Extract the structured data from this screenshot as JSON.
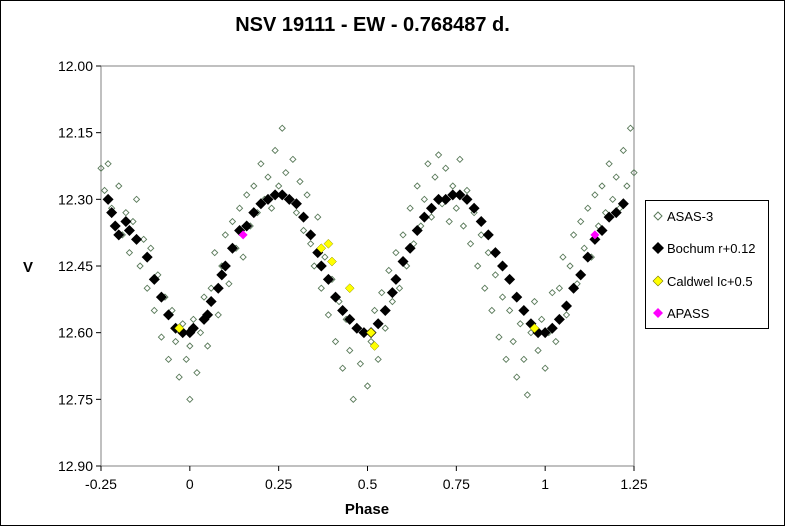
{
  "chart_data": {
    "type": "scatter",
    "title": "NSV 19111 - EW - 0.768487  d.",
    "xlabel": "Phase",
    "ylabel": "V",
    "xlim": [
      -0.25,
      1.25
    ],
    "ylim": [
      12.9,
      12.0
    ],
    "y_inverted": true,
    "x_ticks": [
      "-0.25",
      "0",
      "0.25",
      "0.5",
      "0.75",
      "1",
      "1.25"
    ],
    "y_ticks": [
      "12.00",
      "12.15",
      "12.30",
      "12.45",
      "12.60",
      "12.75",
      "12.90"
    ],
    "grid": false,
    "legend_position": "right",
    "series": [
      {
        "name": "ASAS-3",
        "marker": "diamond-open",
        "color": "#5a7a5a",
        "points": [
          [
            -0.25,
            12.23
          ],
          [
            -0.24,
            12.28
          ],
          [
            -0.23,
            12.22
          ],
          [
            -0.22,
            12.32
          ],
          [
            -0.21,
            12.36
          ],
          [
            -0.2,
            12.27
          ],
          [
            -0.19,
            12.38
          ],
          [
            -0.18,
            12.33
          ],
          [
            -0.17,
            12.42
          ],
          [
            -0.16,
            12.35
          ],
          [
            -0.15,
            12.3
          ],
          [
            -0.14,
            12.45
          ],
          [
            -0.13,
            12.39
          ],
          [
            -0.12,
            12.5
          ],
          [
            -0.11,
            12.41
          ],
          [
            -0.1,
            12.55
          ],
          [
            -0.09,
            12.47
          ],
          [
            -0.08,
            12.61
          ],
          [
            -0.07,
            12.52
          ],
          [
            -0.06,
            12.66
          ],
          [
            -0.05,
            12.55
          ],
          [
            -0.04,
            12.62
          ],
          [
            -0.03,
            12.7
          ],
          [
            -0.02,
            12.58
          ],
          [
            -0.01,
            12.66
          ],
          [
            0.0,
            12.75
          ],
          [
            0.0,
            12.63
          ],
          [
            0.01,
            12.57
          ],
          [
            0.02,
            12.69
          ],
          [
            0.03,
            12.6
          ],
          [
            0.04,
            12.52
          ],
          [
            0.05,
            12.63
          ],
          [
            0.06,
            12.5
          ],
          [
            0.07,
            12.42
          ],
          [
            0.08,
            12.56
          ],
          [
            0.09,
            12.45
          ],
          [
            0.1,
            12.38
          ],
          [
            0.11,
            12.49
          ],
          [
            0.12,
            12.35
          ],
          [
            0.13,
            12.41
          ],
          [
            0.14,
            12.32
          ],
          [
            0.15,
            12.43
          ],
          [
            0.16,
            12.29
          ],
          [
            0.17,
            12.36
          ],
          [
            0.18,
            12.27
          ],
          [
            0.19,
            12.33
          ],
          [
            0.2,
            12.22
          ],
          [
            0.21,
            12.3
          ],
          [
            0.22,
            12.25
          ],
          [
            0.23,
            12.32
          ],
          [
            0.24,
            12.19
          ],
          [
            0.25,
            12.27
          ],
          [
            0.26,
            12.14
          ],
          [
            0.27,
            12.24
          ],
          [
            0.28,
            12.3
          ],
          [
            0.29,
            12.21
          ],
          [
            0.3,
            12.33
          ],
          [
            0.31,
            12.26
          ],
          [
            0.32,
            12.37
          ],
          [
            0.33,
            12.29
          ],
          [
            0.34,
            12.4
          ],
          [
            0.35,
            12.45
          ],
          [
            0.36,
            12.34
          ],
          [
            0.37,
            12.5
          ],
          [
            0.38,
            12.43
          ],
          [
            0.39,
            12.56
          ],
          [
            0.4,
            12.48
          ],
          [
            0.41,
            12.62
          ],
          [
            0.42,
            12.53
          ],
          [
            0.43,
            12.68
          ],
          [
            0.44,
            12.57
          ],
          [
            0.45,
            12.64
          ],
          [
            0.46,
            12.75
          ],
          [
            0.47,
            12.59
          ],
          [
            0.48,
            12.67
          ],
          [
            0.49,
            12.6
          ],
          [
            0.5,
            12.72
          ],
          [
            0.51,
            12.62
          ],
          [
            0.52,
            12.55
          ],
          [
            0.53,
            12.66
          ],
          [
            0.54,
            12.51
          ],
          [
            0.55,
            12.59
          ],
          [
            0.56,
            12.46
          ],
          [
            0.57,
            12.53
          ],
          [
            0.58,
            12.42
          ],
          [
            0.59,
            12.5
          ],
          [
            0.6,
            12.38
          ],
          [
            0.61,
            12.45
          ],
          [
            0.62,
            12.32
          ],
          [
            0.63,
            12.4
          ],
          [
            0.64,
            12.27
          ],
          [
            0.65,
            12.36
          ],
          [
            0.66,
            12.3
          ],
          [
            0.67,
            12.22
          ],
          [
            0.68,
            12.34
          ],
          [
            0.69,
            12.25
          ],
          [
            0.7,
            12.2
          ],
          [
            0.71,
            12.31
          ],
          [
            0.72,
            12.23
          ],
          [
            0.73,
            12.35
          ],
          [
            0.74,
            12.27
          ],
          [
            0.75,
            12.32
          ],
          [
            0.76,
            12.21
          ],
          [
            0.77,
            12.36
          ],
          [
            0.78,
            12.28
          ],
          [
            0.79,
            12.4
          ],
          [
            0.8,
            12.33
          ],
          [
            0.81,
            12.45
          ],
          [
            0.82,
            12.38
          ],
          [
            0.83,
            12.5
          ],
          [
            0.84,
            12.42
          ],
          [
            0.85,
            12.55
          ],
          [
            0.86,
            12.47
          ],
          [
            0.87,
            12.61
          ],
          [
            0.88,
            12.52
          ],
          [
            0.89,
            12.66
          ],
          [
            0.9,
            12.55
          ],
          [
            0.91,
            12.62
          ],
          [
            0.92,
            12.7
          ],
          [
            0.93,
            12.58
          ],
          [
            0.94,
            12.66
          ],
          [
            0.95,
            12.74
          ],
          [
            0.96,
            12.6
          ],
          [
            0.97,
            12.53
          ],
          [
            0.98,
            12.64
          ],
          [
            0.99,
            12.57
          ],
          [
            1.0,
            12.68
          ],
          [
            1.01,
            12.6
          ],
          [
            1.02,
            12.51
          ],
          [
            1.03,
            12.62
          ],
          [
            1.04,
            12.5
          ],
          [
            1.05,
            12.43
          ],
          [
            1.06,
            12.56
          ],
          [
            1.07,
            12.45
          ],
          [
            1.08,
            12.38
          ],
          [
            1.09,
            12.49
          ],
          [
            1.1,
            12.35
          ],
          [
            1.11,
            12.41
          ],
          [
            1.12,
            12.32
          ],
          [
            1.13,
            12.43
          ],
          [
            1.14,
            12.29
          ],
          [
            1.15,
            12.36
          ],
          [
            1.16,
            12.27
          ],
          [
            1.17,
            12.33
          ],
          [
            1.18,
            12.22
          ],
          [
            1.19,
            12.3
          ],
          [
            1.2,
            12.25
          ],
          [
            1.21,
            12.32
          ],
          [
            1.22,
            12.19
          ],
          [
            1.23,
            12.27
          ],
          [
            1.24,
            12.14
          ],
          [
            1.25,
            12.24
          ]
        ]
      },
      {
        "name": "Bochum r+0.12",
        "marker": "diamond-filled",
        "color": "#000000",
        "points": [
          [
            -0.23,
            12.3
          ],
          [
            -0.22,
            12.33
          ],
          [
            -0.21,
            12.36
          ],
          [
            -0.2,
            12.38
          ],
          [
            -0.18,
            12.35
          ],
          [
            -0.17,
            12.37
          ],
          [
            -0.15,
            12.39
          ],
          [
            -0.12,
            12.43
          ],
          [
            -0.1,
            12.48
          ],
          [
            -0.08,
            12.52
          ],
          [
            -0.06,
            12.56
          ],
          [
            -0.04,
            12.59
          ],
          [
            -0.02,
            12.6
          ],
          [
            0.0,
            12.6
          ],
          [
            0.01,
            12.59
          ],
          [
            0.04,
            12.57
          ],
          [
            0.05,
            12.56
          ],
          [
            0.06,
            12.53
          ],
          [
            0.08,
            12.5
          ],
          [
            0.09,
            12.47
          ],
          [
            0.1,
            12.45
          ],
          [
            0.12,
            12.41
          ],
          [
            0.14,
            12.37
          ],
          [
            0.16,
            12.36
          ],
          [
            0.18,
            12.33
          ],
          [
            0.2,
            12.31
          ],
          [
            0.22,
            12.3
          ],
          [
            0.24,
            12.29
          ],
          [
            0.26,
            12.29
          ],
          [
            0.28,
            12.3
          ],
          [
            0.3,
            12.31
          ],
          [
            0.32,
            12.34
          ],
          [
            0.34,
            12.38
          ],
          [
            0.36,
            12.42
          ],
          [
            0.37,
            12.45
          ],
          [
            0.39,
            12.48
          ],
          [
            0.41,
            12.52
          ],
          [
            0.43,
            12.55
          ],
          [
            0.45,
            12.57
          ],
          [
            0.47,
            12.59
          ],
          [
            0.49,
            12.6
          ],
          [
            0.51,
            12.6
          ],
          [
            0.53,
            12.58
          ],
          [
            0.55,
            12.55
          ],
          [
            0.57,
            12.51
          ],
          [
            0.58,
            12.48
          ],
          [
            0.6,
            12.44
          ],
          [
            0.62,
            12.41
          ],
          [
            0.64,
            12.37
          ],
          [
            0.66,
            12.34
          ],
          [
            0.68,
            12.32
          ],
          [
            0.7,
            12.3
          ],
          [
            0.72,
            12.3
          ],
          [
            0.74,
            12.29
          ],
          [
            0.76,
            12.29
          ],
          [
            0.78,
            12.3
          ],
          [
            0.8,
            12.32
          ],
          [
            0.82,
            12.35
          ],
          [
            0.84,
            12.38
          ],
          [
            0.86,
            12.42
          ],
          [
            0.88,
            12.45
          ],
          [
            0.9,
            12.48
          ],
          [
            0.92,
            12.52
          ],
          [
            0.94,
            12.55
          ],
          [
            0.96,
            12.58
          ],
          [
            0.98,
            12.6
          ],
          [
            1.0,
            12.6
          ],
          [
            1.02,
            12.59
          ],
          [
            1.04,
            12.57
          ],
          [
            1.06,
            12.54
          ],
          [
            1.08,
            12.5
          ],
          [
            1.1,
            12.47
          ],
          [
            1.12,
            12.43
          ],
          [
            1.14,
            12.39
          ],
          [
            1.16,
            12.37
          ],
          [
            1.18,
            12.34
          ],
          [
            1.2,
            12.33
          ],
          [
            1.22,
            12.31
          ]
        ]
      },
      {
        "name": "Caldwel Ic+0.5",
        "marker": "diamond-filled",
        "color": "#ffff00",
        "points": [
          [
            -0.03,
            12.59
          ],
          [
            0.37,
            12.41
          ],
          [
            0.39,
            12.4
          ],
          [
            0.4,
            12.44
          ],
          [
            0.45,
            12.5
          ],
          [
            0.51,
            12.6
          ],
          [
            0.52,
            12.63
          ],
          [
            0.97,
            12.59
          ]
        ]
      },
      {
        "name": "APASS",
        "marker": "diamond-filled",
        "color": "#ff00ff",
        "points": [
          [
            0.15,
            12.38
          ],
          [
            1.14,
            12.38
          ]
        ]
      }
    ]
  }
}
